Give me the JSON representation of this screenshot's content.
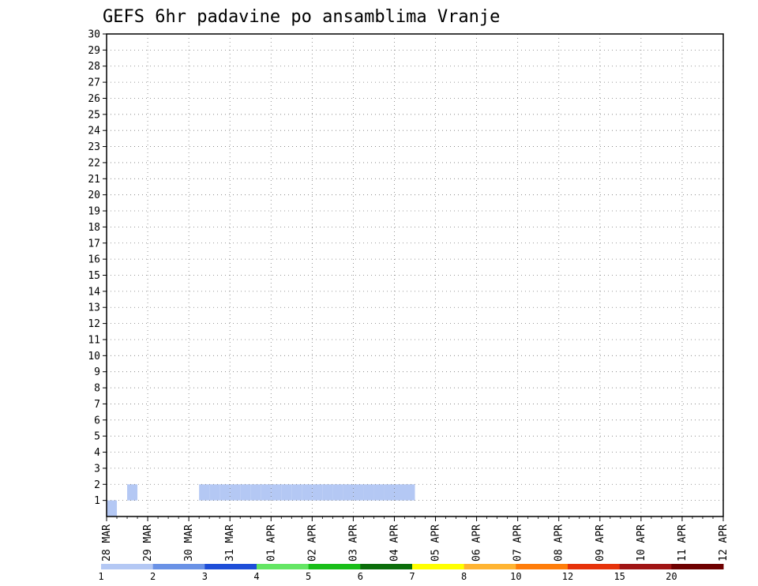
{
  "chart_data": {
    "type": "heatmap",
    "title": "GEFS 6hr padavine po ansamblima Vranje",
    "ylabel": "",
    "xlabel": "",
    "x_tick_labels": [
      "28 MAR",
      "29 MAR",
      "30 MAR",
      "31 MAR",
      "01 APR",
      "02 APR",
      "03 APR",
      "04 APR",
      "05 APR",
      "06 APR",
      "07 APR",
      "08 APR",
      "09 APR",
      "10 APR",
      "11 APR",
      "12 APR"
    ],
    "y_tick_labels": [
      "1",
      "2",
      "3",
      "4",
      "5",
      "6",
      "7",
      "8",
      "9",
      "10",
      "11",
      "12",
      "13",
      "14",
      "15",
      "16",
      "17",
      "18",
      "19",
      "20",
      "21",
      "22",
      "23",
      "24",
      "25",
      "26",
      "27",
      "28",
      "29",
      "30"
    ],
    "y_range": [
      1,
      30
    ],
    "x_range_days": [
      0,
      15
    ],
    "steps_per_day": 4,
    "grid": true,
    "colorbar": {
      "placement": "bottom",
      "levels": [
        "1",
        "2",
        "3",
        "4",
        "5",
        "6",
        "7",
        "8",
        "10",
        "12",
        "15",
        "20"
      ],
      "colors": [
        "#b4c8f4",
        "#6a92e6",
        "#1e4ed8",
        "#64e664",
        "#19be19",
        "#0b6e0b",
        "#ffff00",
        "#ffb432",
        "#ff7d0a",
        "#e6320a",
        "#a01414",
        "#6e0000"
      ]
    },
    "cells": [
      [
        1,
        1,
        0
      ],
      [
        2,
        3,
        0
      ],
      [
        2,
        10,
        0
      ],
      [
        2,
        11,
        0
      ],
      [
        2,
        12,
        0
      ],
      [
        2,
        13,
        0
      ],
      [
        2,
        14,
        0
      ],
      [
        2,
        15,
        0
      ],
      [
        2,
        16,
        0
      ],
      [
        2,
        17,
        0
      ],
      [
        2,
        18,
        0
      ],
      [
        2,
        19,
        0
      ],
      [
        2,
        20,
        0
      ],
      [
        2,
        21,
        0
      ],
      [
        2,
        22,
        0
      ],
      [
        2,
        23,
        0
      ],
      [
        2,
        24,
        0
      ],
      [
        2,
        25,
        0
      ],
      [
        2,
        26,
        0
      ],
      [
        2,
        27,
        0
      ],
      [
        2,
        28,
        0
      ],
      [
        2,
        29,
        0
      ],
      [
        2,
        30,
        0
      ]
    ],
    "cells_format": "[ensemble_member, six_hour_step_index, color_level_index]"
  }
}
